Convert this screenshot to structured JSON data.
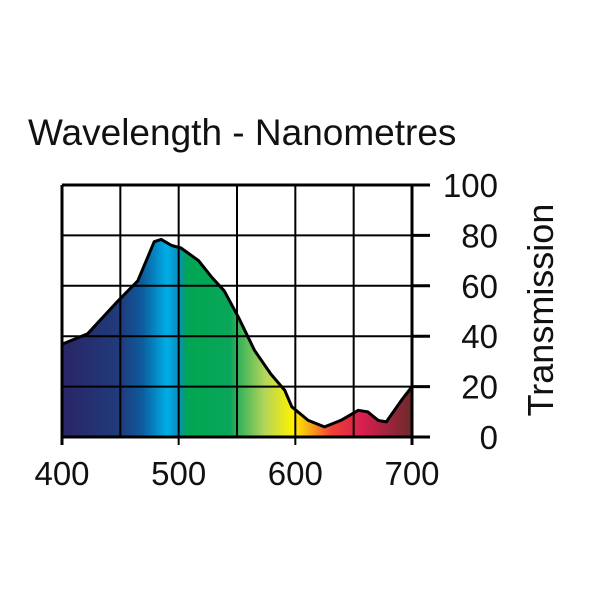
{
  "chart_data": {
    "type": "area",
    "title": "Wavelength - Nanometres",
    "xlabel": "Wavelength - Nanometres",
    "ylabel": "Transmission",
    "xlim": [
      400,
      700
    ],
    "ylim": [
      0,
      100
    ],
    "xticks": [
      "400",
      "500",
      "600",
      "700"
    ],
    "yticks": [
      "0",
      "20",
      "40",
      "60",
      "80",
      "100"
    ],
    "grid": true,
    "x": [
      400,
      422,
      448,
      465,
      479,
      485,
      494,
      502,
      517,
      528,
      539,
      551,
      565,
      579,
      591,
      597,
      611,
      625,
      639,
      654,
      662,
      671,
      678,
      691,
      700
    ],
    "y": [
      36.8,
      41,
      54,
      62,
      77.5,
      78.4,
      76,
      75,
      70,
      63.6,
      58,
      47.7,
      34.4,
      25,
      18.5,
      12,
      6.6,
      4,
      6.6,
      10.6,
      10,
      6.6,
      6,
      14.6,
      20
    ],
    "spectrum_colors": [
      "#2a2566",
      "#1f3f7f",
      "#0b5fa0",
      "#00aee8",
      "#00a651",
      "#0aa65a",
      "#c8dc3c",
      "#fff200",
      "#f7941d",
      "#ef4036",
      "#d71e4f",
      "#6b2a2a"
    ]
  }
}
